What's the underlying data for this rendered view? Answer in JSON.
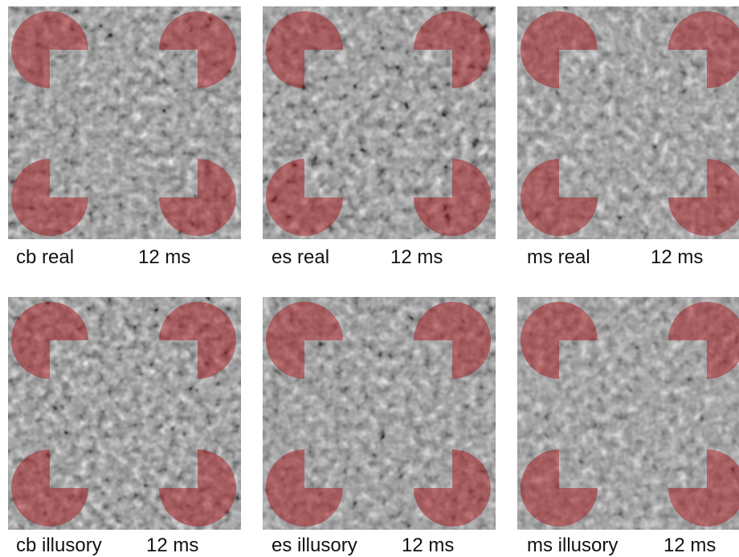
{
  "panels": [
    {
      "subject": "cb",
      "condition": "real",
      "label": "cb real",
      "duration": "12 ms"
    },
    {
      "subject": "es",
      "condition": "real",
      "label": "es real",
      "duration": "12 ms"
    },
    {
      "subject": "ms",
      "condition": "real",
      "label": "ms real",
      "duration": "12 ms"
    },
    {
      "subject": "cb",
      "condition": "illusory",
      "label": "cb illusory",
      "duration": "12 ms"
    },
    {
      "subject": "es",
      "condition": "illusory",
      "label": "es illusory",
      "duration": "12 ms"
    },
    {
      "subject": "ms",
      "condition": "illusory",
      "label": "ms illusory",
      "duration": "12 ms"
    }
  ],
  "colors": {
    "inducer": "#a8181e",
    "noise_dark": "#000000",
    "noise_light": "#ffffff",
    "noise_mid": "#8d8d8d"
  }
}
